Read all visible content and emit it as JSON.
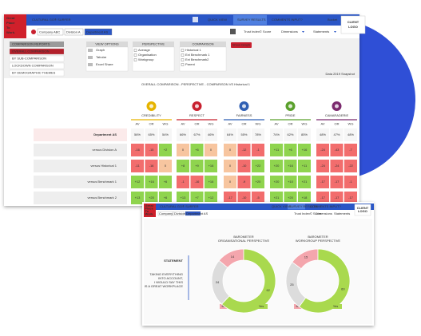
{
  "main": {
    "logo": [
      "Great",
      "Place",
      "To",
      "Work."
    ],
    "app_title": "CULTURAL GO® SURFER",
    "nav": [
      "QUICK VIEW",
      "SURVEY RESULTS",
      "COMMENTS INPUT?"
    ],
    "bucket": "Bucket",
    "client_logo": [
      "CLIENT",
      "LOGO"
    ],
    "breadcrumbs": [
      "Company ABC",
      "Division A",
      "Department AS"
    ],
    "score_label": "Trust Index© Score",
    "dropdowns": [
      "Dimensions",
      "Statements"
    ],
    "menu": {
      "header": "COMPARISON REPORTS",
      "items": [
        "OVERALL COMPARISON",
        "BY SUB-COMPARISON",
        "LOCKDOWN COMPARISON",
        "BY DEMOGRAPHIC THEMES"
      ]
    },
    "view_options": {
      "title": "VIEW OPTIONS",
      "items": [
        "Graph",
        "Tabular",
        "Excel Share"
      ]
    },
    "perspective": {
      "title": "PERSPECTIVE",
      "items": [
        "Average",
        "Organisation",
        "Workgroup"
      ]
    },
    "comparison": {
      "title": "COMPARISON",
      "items": [
        "Historical 1",
        "Ext Benchmark 1",
        "Ext Benchmark2",
        "Parent"
      ]
    },
    "button": "Show Graph",
    "timestamp": "Data 2019 Snapshot",
    "report_title": "OVERALL COMPARISON - PERSPECTIVE  - COMPARISON VS Historical 1",
    "dimensions": [
      {
        "name": "CREDIBILITY",
        "color": "#e6b400"
      },
      {
        "name": "RESPECT",
        "color": "#c8202f"
      },
      {
        "name": "FAIRNESS",
        "color": "#2f5fb3"
      },
      {
        "name": "PRIDE",
        "color": "#5aa02c"
      },
      {
        "name": "CAMARADERIE",
        "color": "#7b2a6e"
      }
    ],
    "columns": [
      "AV",
      "OR",
      "WG"
    ],
    "rows": [
      {
        "label": "Department AS",
        "cells": [
          "56%",
          "65%",
          "54%",
          "66%",
          "67%",
          "46%",
          "64%",
          "55%",
          "78%",
          "74%",
          "62%",
          "85%",
          "48%",
          "47%",
          "48%"
        ]
      },
      {
        "label": "versus Division A",
        "cells": [
          "-16",
          "-15",
          "+2",
          "0",
          "+6",
          "0",
          "0",
          "-12",
          "-1",
          "+11",
          "+6",
          "+16",
          "-24",
          "-43",
          "-7"
        ]
      },
      {
        "label": "versus Historical 1",
        "cells": [
          "-11",
          "-16",
          "0",
          "+8",
          "+9",
          "+16",
          "0",
          "-10",
          "+22",
          "+20",
          "+16",
          "+11",
          "-24",
          "-24",
          "-22"
        ]
      },
      {
        "label": "versus Benchmark 1",
        "cells": [
          "+12",
          "+16",
          "+6",
          "-1",
          "-16",
          "+16",
          "0",
          "-9",
          "+20",
          "+20",
          "+10",
          "+21",
          "-17",
          "-17",
          "-1"
        ]
      },
      {
        "label": "versus Benchmark 2",
        "cells": [
          "+13",
          "+20",
          "+6",
          "+13",
          "+7",
          "+12",
          "-17",
          "-10",
          "-5",
          "+21",
          "+20",
          "+18",
          "-17",
          "-17",
          "-17"
        ]
      }
    ]
  },
  "second": {
    "statement_label": "STATEMENT",
    "statement": [
      "TAKING EVERYTHING",
      "INTO ACCOUNT,",
      "I WOULD SAY THIS",
      "IS A GREAT WORKPLACE"
    ],
    "charts": [
      {
        "title": [
          "BAROMETER",
          "ORGANISATIONAL PERSPECTIVE"
        ],
        "segments": [
          {
            "name": "Below",
            "value": 14,
            "color": "#f4a6ad"
          },
          {
            "name": "Borderline",
            "value": 24,
            "color": "#dcdcdc"
          },
          {
            "name": "Yes",
            "value": 62,
            "color": "#a9d94e"
          }
        ]
      },
      {
        "title": [
          "BAROMETER",
          "WORKGROUP PERSPECTIVE"
        ],
        "segments": [
          {
            "name": "Below",
            "value": 15,
            "color": "#f4a6ad"
          },
          {
            "name": "Borderline",
            "value": 25,
            "color": "#dcdcdc"
          },
          {
            "name": "Yes",
            "value": 60,
            "color": "#a9d94e"
          }
        ]
      }
    ]
  }
}
